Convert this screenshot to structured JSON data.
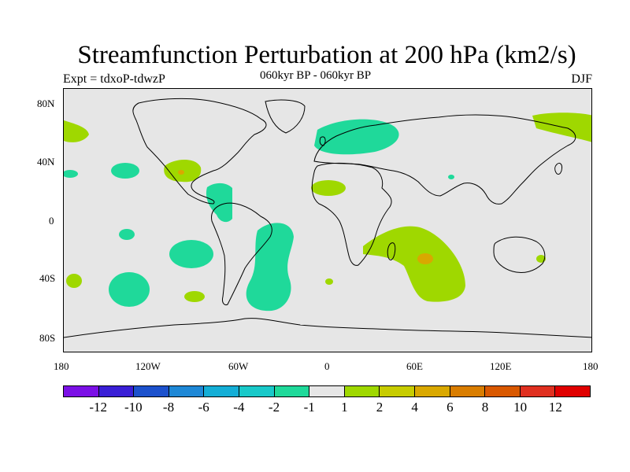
{
  "title": "Streamfunction Perturbation at 200 hPa (km2/s)",
  "left_label": "Expt = tdxoP-tdwzP",
  "center_label": "060kyr BP - 060kyr BP",
  "right_label": "DJF",
  "lat_ticks": [
    "80N",
    "40N",
    "0",
    "40S",
    "80S"
  ],
  "lon_ticks": [
    "180",
    "120W",
    "60W",
    "0",
    "60E",
    "120E",
    "180"
  ],
  "colorbar": {
    "colors": [
      "#7b10e6",
      "#3a1fd6",
      "#1c51cc",
      "#1e88d6",
      "#14aed6",
      "#19c9c9",
      "#1fd99a",
      "#e6e6e6",
      "#9fd800",
      "#c7cc00",
      "#d9a800",
      "#d97d00",
      "#d95800",
      "#e03020",
      "#e00000"
    ],
    "labels": [
      "-12",
      "-10",
      "-8",
      "-6",
      "-4",
      "-2",
      "-1",
      "1",
      "2",
      "4",
      "6",
      "8",
      "10",
      "12"
    ]
  },
  "colors": {
    "negative_fill": "#1fd99a",
    "positive_fill": "#9fd800",
    "positive_core": "#d9a800",
    "background": "#e6e6e6",
    "coastline": "#000000"
  }
}
